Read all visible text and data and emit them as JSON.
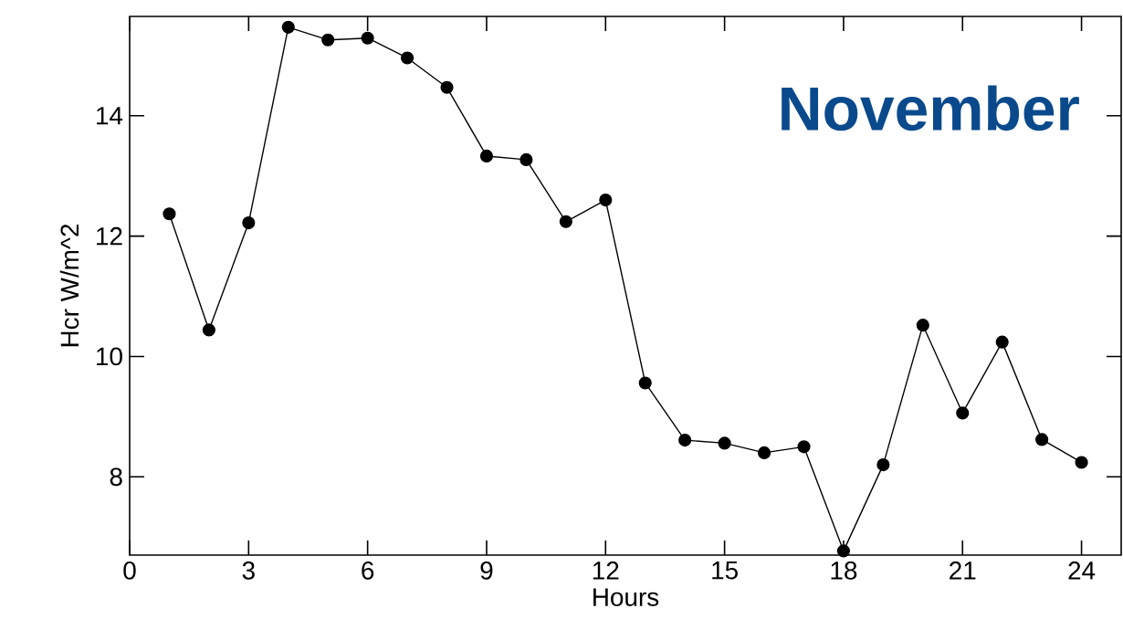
{
  "chart_data": {
    "type": "line",
    "xlabel": "Hours",
    "ylabel": "Hcr W/m^2",
    "annotations": [
      "November"
    ],
    "x": [
      1,
      2,
      3,
      4,
      5,
      6,
      7,
      8,
      9,
      10,
      11,
      12,
      13,
      14,
      15,
      16,
      17,
      18,
      19,
      20,
      21,
      22,
      23,
      24
    ],
    "values": [
      12.37,
      10.44,
      12.22,
      15.47,
      15.26,
      15.29,
      14.96,
      14.47,
      13.33,
      13.27,
      12.24,
      12.6,
      9.56,
      8.61,
      8.56,
      8.4,
      8.5,
      6.77,
      8.2,
      10.52,
      9.06,
      10.24,
      8.62,
      8.24
    ],
    "color": "#000000",
    "marker": "circle",
    "line_style": "solid",
    "xlim": [
      0,
      25
    ],
    "ylim": [
      6.7,
      15.65
    ],
    "xticks": [
      0,
      3,
      6,
      9,
      12,
      15,
      18,
      21,
      24
    ],
    "yticks": [
      8,
      10,
      12,
      14
    ]
  }
}
